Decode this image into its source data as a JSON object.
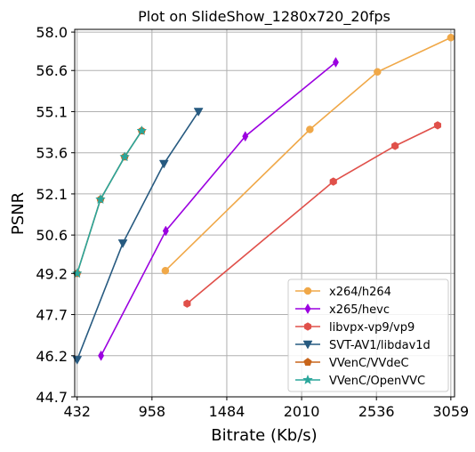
{
  "chart_data": {
    "type": "line",
    "title": "Plot on SlideShow_1280x720_20fps",
    "xlabel": "Bitrate (Kb/s)",
    "ylabel": "PSNR",
    "xlim": [
      415,
      3085
    ],
    "ylim": [
      44.7,
      58.1
    ],
    "xticks": [
      432,
      958,
      1484,
      2010,
      2536,
      3059
    ],
    "xtick_labels": [
      "432",
      "958",
      "1484",
      "2010",
      "2536",
      "3059"
    ],
    "yticks": [
      44.7,
      46.2,
      47.7,
      49.2,
      50.6,
      52.1,
      53.6,
      55.1,
      56.6,
      58.0
    ],
    "ytick_labels": [
      "44.7",
      "46.2",
      "47.7",
      "49.2",
      "50.6",
      "52.1",
      "53.6",
      "55.1",
      "56.6",
      "58.0"
    ],
    "grid": true,
    "legend_position": "lower-right",
    "series": [
      {
        "name": "x264/h264",
        "color": "#f0a848",
        "marker": "circle",
        "x": [
          1052,
          2068,
          2543,
          3059
        ],
        "y": [
          49.3,
          54.45,
          56.55,
          57.8
        ]
      },
      {
        "name": "x265/hevc",
        "color": "#9b00e0",
        "marker": "thin-diamond",
        "x": [
          600,
          1055,
          1614,
          2250
        ],
        "y": [
          46.2,
          50.75,
          54.2,
          56.9
        ]
      },
      {
        "name": "libvpx-vp9/vp9",
        "color": "#e0504a",
        "marker": "hexagon",
        "x": [
          1205,
          2233,
          2667,
          2966
        ],
        "y": [
          48.1,
          52.55,
          53.85,
          54.6
        ]
      },
      {
        "name": "SVT-AV1/libdav1d",
        "color": "#275a80",
        "marker": "triangle-down",
        "x": [
          432,
          753,
          1042,
          1285
        ],
        "y": [
          46.05,
          50.3,
          53.2,
          55.1
        ]
      },
      {
        "name": "VVenC/VVdeC",
        "color": "#c8651b",
        "marker": "pentagon",
        "x": [
          432,
          596,
          766,
          886
        ],
        "y": [
          49.2,
          51.9,
          53.45,
          54.4
        ]
      },
      {
        "name": "VVenC/OpenVVC",
        "color": "#2aa69b",
        "marker": "star",
        "x": [
          432,
          596,
          766,
          886
        ],
        "y": [
          49.2,
          51.9,
          53.45,
          54.4
        ]
      }
    ]
  }
}
